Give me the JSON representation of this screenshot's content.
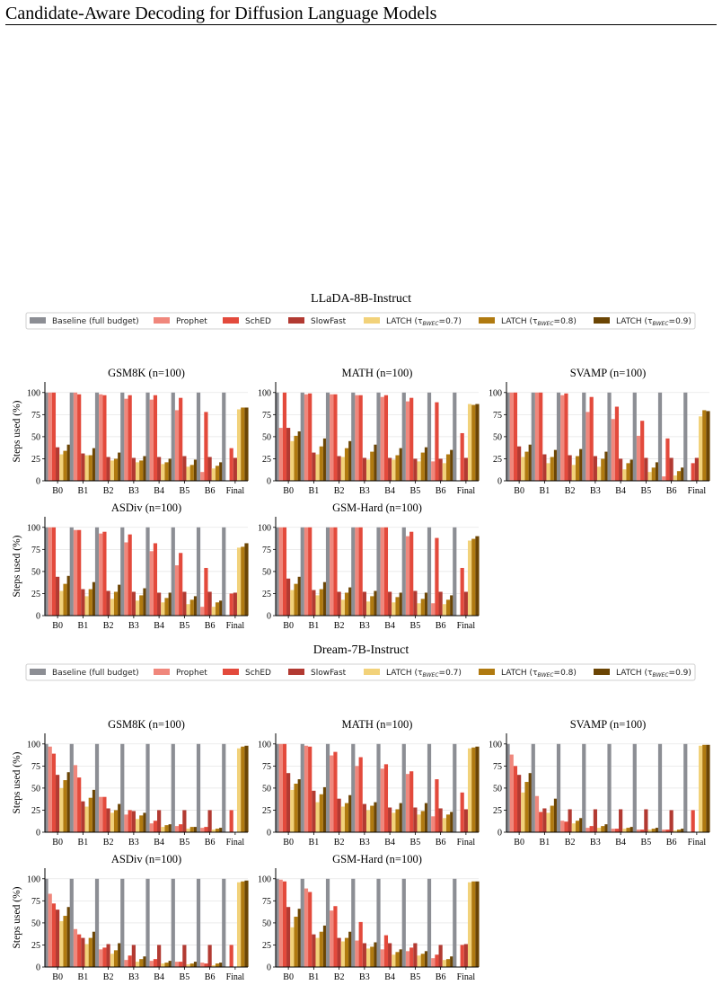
{
  "page": {
    "title": "Candidate-Aware Decoding for Diffusion Language Models"
  },
  "legend": {
    "items": [
      {
        "label": "Baseline (full budget)",
        "color": "#8c8e94"
      },
      {
        "label": "Prophet",
        "color": "#f0877c"
      },
      {
        "label": "SchED",
        "color": "#e34a3c"
      },
      {
        "label": "SlowFast",
        "color": "#b23a32"
      },
      {
        "label": "LATCH (τ",
        "sub": "BWEC",
        "tail": "=0.7)",
        "color": "#f2d27a"
      },
      {
        "label": "LATCH (τ",
        "sub": "BWEC",
        "tail": "=0.8)",
        "color": "#b07a10"
      },
      {
        "label": "LATCH (τ",
        "sub": "BWEC",
        "tail": "=0.9)",
        "color": "#6b4504"
      }
    ]
  },
  "chart_data": {
    "type": "bar",
    "ylabel": "Steps used (%)",
    "ylim": [
      0,
      112
    ],
    "yticks": [
      0,
      25,
      50,
      75,
      100
    ],
    "categories": [
      "B0",
      "B1",
      "B2",
      "B3",
      "B4",
      "B5",
      "B6",
      "Final"
    ],
    "series_names": [
      "Baseline (full budget)",
      "Prophet",
      "SchED",
      "SlowFast",
      "LATCH (τBWEC=0.7)",
      "LATCH (τBWEC=0.8)",
      "LATCH (τBWEC=0.9)"
    ],
    "groups": [
      {
        "model": "LLaDA-8B-Instruct",
        "charts": [
          {
            "title": "GSM8K (n=100)",
            "series": [
              [
                100,
                100,
                100,
                100,
                100,
                100,
                100,
                100
              ],
              [
                100,
                100,
                98,
                93,
                92,
                80,
                10,
                0
              ],
              [
                100,
                98,
                97,
                97,
                97,
                94,
                78,
                37
              ],
              [
                38,
                31,
                27,
                26,
                27,
                28,
                27,
                26
              ],
              [
                30,
                29,
                23,
                21,
                19,
                16,
                14,
                81
              ],
              [
                34,
                29,
                25,
                23,
                21,
                18,
                17,
                83
              ],
              [
                41,
                37,
                32,
                28,
                25,
                24,
                21,
                83
              ]
            ]
          },
          {
            "title": "MATH (n=100)",
            "series": [
              [
                100,
                100,
                100,
                100,
                100,
                100,
                100,
                100
              ],
              [
                60,
                98,
                98,
                97,
                95,
                90,
                22,
                0
              ],
              [
                100,
                99,
                98,
                97,
                97,
                94,
                89,
                54
              ],
              [
                60,
                32,
                28,
                26,
                26,
                25,
                25,
                26
              ],
              [
                45,
                30,
                27,
                24,
                24,
                22,
                20,
                87
              ],
              [
                51,
                39,
                37,
                33,
                29,
                32,
                30,
                86
              ],
              [
                56,
                48,
                45,
                41,
                37,
                38,
                35,
                87
              ]
            ]
          },
          {
            "title": "SVAMP (n=100)",
            "series": [
              [
                100,
                100,
                100,
                100,
                100,
                100,
                100,
                100
              ],
              [
                100,
                100,
                97,
                78,
                70,
                51,
                5,
                0
              ],
              [
                100,
                100,
                99,
                95,
                84,
                68,
                48,
                20
              ],
              [
                39,
                30,
                29,
                28,
                25,
                26,
                26,
                26
              ],
              [
                27,
                20,
                18,
                16,
                13,
                10,
                6,
                73
              ],
              [
                33,
                27,
                28,
                25,
                20,
                15,
                11,
                80
              ],
              [
                41,
                35,
                36,
                33,
                24,
                21,
                15,
                79
              ]
            ]
          },
          {
            "title": "ASDiv (n=100)",
            "series": [
              [
                100,
                100,
                100,
                100,
                100,
                100,
                100,
                100
              ],
              [
                100,
                97,
                93,
                83,
                73,
                57,
                10,
                0
              ],
              [
                100,
                97,
                95,
                92,
                82,
                71,
                54,
                25
              ],
              [
                44,
                30,
                28,
                27,
                26,
                27,
                27,
                26
              ],
              [
                28,
                22,
                19,
                17,
                15,
                13,
                10,
                77
              ],
              [
                36,
                30,
                27,
                23,
                20,
                18,
                15,
                78
              ],
              [
                45,
                38,
                35,
                31,
                26,
                22,
                17,
                82
              ]
            ]
          },
          {
            "title": "GSM-Hard (n=100)",
            "series": [
              [
                100,
                100,
                100,
                100,
                100,
                100,
                100,
                100
              ],
              [
                100,
                100,
                100,
                100,
                100,
                90,
                14,
                0
              ],
              [
                100,
                100,
                100,
                100,
                100,
                95,
                88,
                54
              ],
              [
                42,
                29,
                27,
                27,
                27,
                28,
                27,
                27
              ],
              [
                29,
                23,
                18,
                16,
                15,
                14,
                13,
                85
              ],
              [
                36,
                30,
                26,
                22,
                21,
                19,
                18,
                87
              ],
              [
                44,
                38,
                32,
                28,
                26,
                26,
                23,
                90
              ]
            ]
          }
        ]
      },
      {
        "model": "Dream-7B-Instruct",
        "charts": [
          {
            "title": "GSM8K (n=100)",
            "series": [
              [
                100,
                100,
                100,
                100,
                100,
                100,
                100,
                100
              ],
              [
                97,
                76,
                40,
                20,
                10,
                7,
                5,
                0
              ],
              [
                89,
                62,
                40,
                25,
                13,
                9,
                6,
                25
              ],
              [
                65,
                35,
                27,
                24,
                25,
                25,
                25,
                0
              ],
              [
                50,
                29,
                22,
                15,
                6,
                4,
                3,
                95
              ],
              [
                59,
                39,
                25,
                19,
                8,
                6,
                4,
                97
              ],
              [
                68,
                48,
                32,
                22,
                9,
                6,
                5,
                98
              ]
            ]
          },
          {
            "title": "MATH (n=100)",
            "series": [
              [
                100,
                100,
                100,
                100,
                100,
                100,
                100,
                100
              ],
              [
                100,
                98,
                87,
                75,
                72,
                66,
                18,
                0
              ],
              [
                100,
                97,
                91,
                85,
                77,
                69,
                60,
                45
              ],
              [
                67,
                47,
                38,
                32,
                28,
                28,
                27,
                26
              ],
              [
                48,
                34,
                29,
                25,
                22,
                20,
                16,
                95
              ],
              [
                55,
                43,
                33,
                30,
                26,
                24,
                20,
                96
              ],
              [
                60,
                51,
                42,
                34,
                33,
                33,
                23,
                97
              ]
            ]
          },
          {
            "title": "SVAMP (n=100)",
            "series": [
              [
                100,
                100,
                100,
                100,
                100,
                100,
                100,
                100
              ],
              [
                88,
                41,
                13,
                5,
                4,
                3,
                3,
                0
              ],
              [
                75,
                23,
                12,
                7,
                4,
                3,
                3,
                25
              ],
              [
                65,
                27,
                26,
                26,
                26,
                26,
                25,
                0
              ],
              [
                45,
                22,
                10,
                5,
                4,
                3,
                2,
                98
              ],
              [
                57,
                30,
                13,
                7,
                5,
                4,
                3,
                99
              ],
              [
                67,
                38,
                16,
                9,
                6,
                5,
                4,
                99
              ]
            ]
          },
          {
            "title": "ASDiv (n=100)",
            "series": [
              [
                100,
                100,
                100,
                100,
                100,
                100,
                100,
                100
              ],
              [
                83,
                43,
                20,
                8,
                7,
                6,
                5,
                0
              ],
              [
                72,
                37,
                22,
                13,
                9,
                6,
                4,
                25
              ],
              [
                65,
                33,
                26,
                25,
                25,
                25,
                25,
                0
              ],
              [
                52,
                26,
                15,
                6,
                4,
                3,
                2,
                96
              ],
              [
                58,
                33,
                19,
                9,
                5,
                4,
                4,
                97
              ],
              [
                68,
                40,
                27,
                12,
                7,
                6,
                5,
                98
              ]
            ]
          },
          {
            "title": "GSM-Hard (n=100)",
            "series": [
              [
                100,
                100,
                100,
                100,
                100,
                100,
                100,
                100
              ],
              [
                99,
                89,
                64,
                30,
                20,
                18,
                10,
                0
              ],
              [
                97,
                85,
                69,
                51,
                36,
                22,
                14,
                25
              ],
              [
                68,
                37,
                33,
                27,
                27,
                27,
                25,
                26
              ],
              [
                45,
                33,
                29,
                21,
                14,
                13,
                8,
                96
              ],
              [
                57,
                40,
                33,
                23,
                17,
                15,
                9,
                97
              ],
              [
                66,
                47,
                40,
                28,
                20,
                18,
                12,
                97
              ]
            ]
          }
        ]
      }
    ]
  }
}
